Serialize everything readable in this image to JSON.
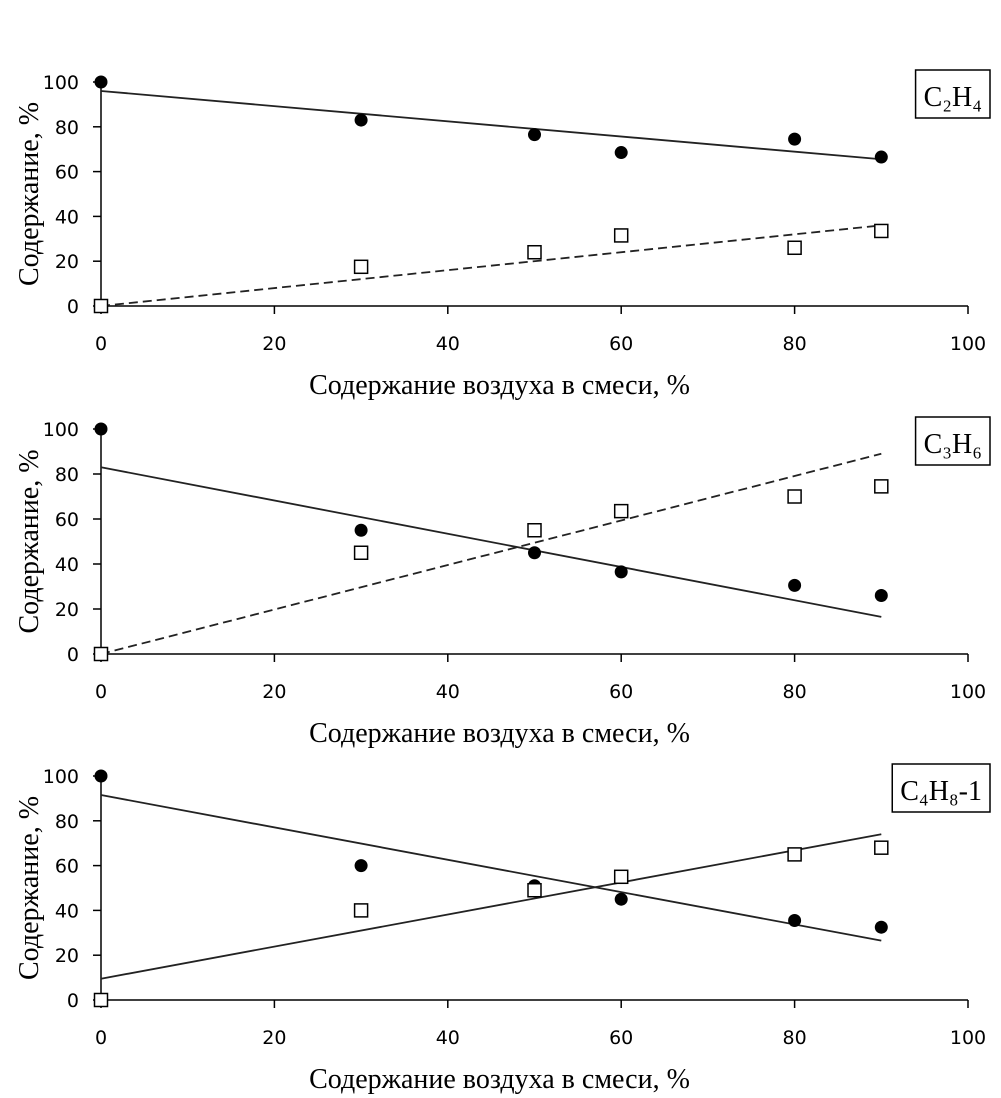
{
  "chart_data": [
    {
      "type": "scatter",
      "label": "C₂H₄",
      "xlabel": "Содержание воздуха в смеси, %",
      "ylabel": "Содержание, %",
      "x": [
        0,
        30,
        50,
        60,
        80,
        90
      ],
      "series": [
        {
          "marker": "circle",
          "color": "#000000",
          "values": [
            100,
            83,
            76.5,
            68.5,
            74.5,
            66.5
          ]
        },
        {
          "marker": "square",
          "color": "#000000",
          "values": [
            0,
            17.5,
            24,
            31.5,
            26,
            33.5
          ]
        }
      ],
      "trendlines": [
        {
          "x": [
            0,
            90
          ],
          "values": [
            96,
            65.5
          ],
          "dash": "solid"
        },
        {
          "x": [
            0,
            90
          ],
          "values": [
            0,
            36
          ],
          "dash": "dashed"
        }
      ],
      "xlim": [
        0,
        100
      ],
      "xticks": [
        0,
        20,
        40,
        60,
        80,
        100
      ],
      "ylim": [
        0,
        100
      ],
      "yticks": [
        0,
        20,
        40,
        60,
        80,
        100
      ]
    },
    {
      "type": "scatter",
      "label": "C₃H₆",
      "xlabel": "Содержание воздуха в смеси, %",
      "ylabel": "Содержание, %",
      "x": [
        0,
        30,
        50,
        60,
        80,
        90
      ],
      "series": [
        {
          "marker": "circle",
          "color": "#000000",
          "values": [
            100,
            55,
            45,
            36.5,
            30.5,
            26
          ]
        },
        {
          "marker": "square",
          "color": "#000000",
          "values": [
            0,
            45,
            55,
            63.5,
            70,
            74.5
          ]
        }
      ],
      "trendlines": [
        {
          "x": [
            0,
            90
          ],
          "values": [
            83,
            16.5
          ],
          "dash": "solid"
        },
        {
          "x": [
            0,
            90
          ],
          "values": [
            0,
            89
          ],
          "dash": "dashed"
        }
      ],
      "xlim": [
        0,
        100
      ],
      "xticks": [
        0,
        20,
        40,
        60,
        80,
        100
      ],
      "ylim": [
        0,
        100
      ],
      "yticks": [
        0,
        20,
        40,
        60,
        80,
        100
      ]
    },
    {
      "type": "scatter",
      "label": "C₄H₈-1",
      "xlabel": "Содержание воздуха в смеси, %",
      "ylabel": "Содержание, %",
      "x": [
        0,
        30,
        50,
        60,
        80,
        90
      ],
      "series": [
        {
          "marker": "circle",
          "color": "#000000",
          "values": [
            100,
            60,
            51,
            45,
            35.5,
            32.5
          ]
        },
        {
          "marker": "square",
          "color": "#000000",
          "values": [
            0,
            40,
            49,
            55,
            65,
            68
          ]
        }
      ],
      "trendlines": [
        {
          "x": [
            0,
            90
          ],
          "values": [
            91.5,
            26.5
          ],
          "dash": "solid"
        },
        {
          "x": [
            0,
            90
          ],
          "values": [
            9.5,
            74
          ],
          "dash": "solid"
        }
      ],
      "xlim": [
        0,
        100
      ],
      "xticks": [
        0,
        20,
        40,
        60,
        80,
        100
      ],
      "ylim": [
        0,
        100
      ],
      "yticks": [
        0,
        20,
        40,
        60,
        80,
        100
      ]
    }
  ]
}
